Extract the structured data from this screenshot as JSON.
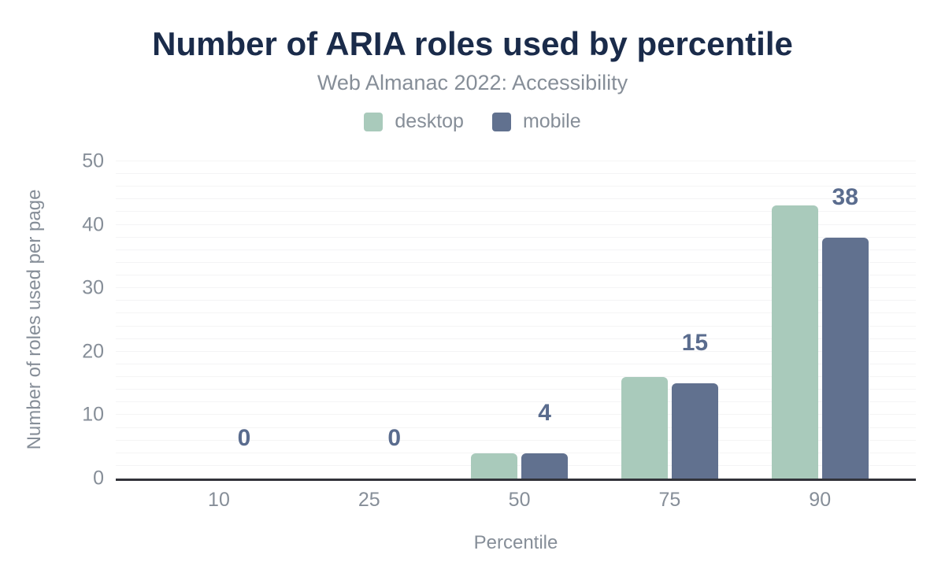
{
  "chart_data": {
    "type": "bar",
    "title": "Number of ARIA roles used by percentile",
    "subtitle": "Web Almanac 2022: Accessibility",
    "xlabel": "Percentile",
    "ylabel": "Number of roles used per page",
    "categories": [
      "10",
      "25",
      "50",
      "75",
      "90"
    ],
    "series": [
      {
        "name": "desktop",
        "color": "#a9cabb",
        "values": [
          0,
          0,
          4,
          16,
          43
        ]
      },
      {
        "name": "mobile",
        "color": "#61718f",
        "values": [
          0,
          0,
          4,
          15,
          38
        ]
      }
    ],
    "bar_labels": [
      "0",
      "0",
      "4",
      "15",
      "38"
    ],
    "bar_labels_series": "mobile",
    "ylim": [
      0,
      50
    ],
    "yticks": [
      "0",
      "10",
      "20",
      "30",
      "40",
      "50"
    ],
    "grid": {
      "horizontal": true,
      "step": 2
    },
    "legend_position": "top",
    "colors": {
      "title": "#1a2b4a",
      "axis_text": "#868e98",
      "data_label": "#5a6c8e",
      "axis_line": "#32333a",
      "gridline": "#f4f4f5",
      "background": "#ffffff"
    }
  }
}
